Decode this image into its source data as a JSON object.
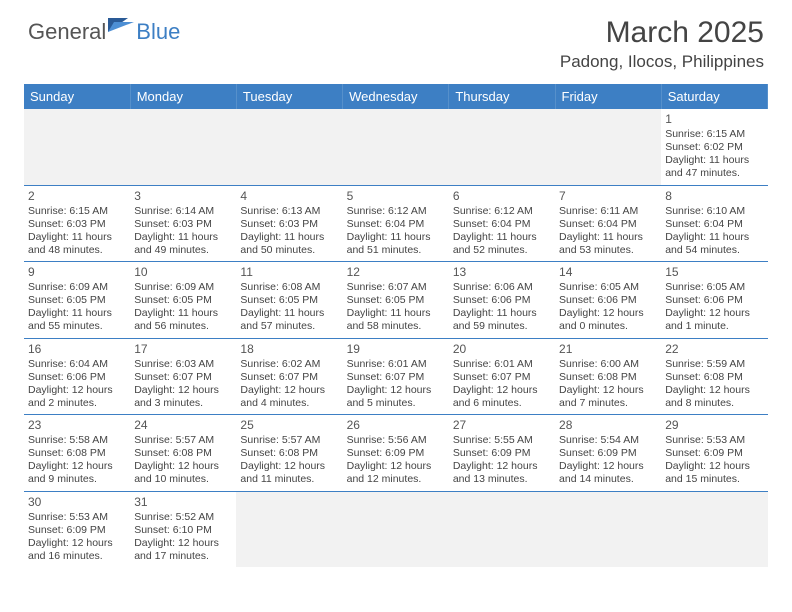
{
  "logo": {
    "text_1": "General",
    "text_2": "Blue"
  },
  "title": "March 2025",
  "location": "Padong, Ilocos, Philippines",
  "colors": {
    "header_bg": "#3d7fc4",
    "header_fg": "#ffffff",
    "rule": "#3d7fc4",
    "empty_bg": "#f2f2f2"
  },
  "weekdays": [
    "Sunday",
    "Monday",
    "Tuesday",
    "Wednesday",
    "Thursday",
    "Friday",
    "Saturday"
  ],
  "weeks": [
    [
      null,
      null,
      null,
      null,
      null,
      null,
      {
        "n": "1",
        "sr": "Sunrise: 6:15 AM",
        "ss": "Sunset: 6:02 PM",
        "dl": "Daylight: 11 hours and 47 minutes."
      }
    ],
    [
      {
        "n": "2",
        "sr": "Sunrise: 6:15 AM",
        "ss": "Sunset: 6:03 PM",
        "dl": "Daylight: 11 hours and 48 minutes."
      },
      {
        "n": "3",
        "sr": "Sunrise: 6:14 AM",
        "ss": "Sunset: 6:03 PM",
        "dl": "Daylight: 11 hours and 49 minutes."
      },
      {
        "n": "4",
        "sr": "Sunrise: 6:13 AM",
        "ss": "Sunset: 6:03 PM",
        "dl": "Daylight: 11 hours and 50 minutes."
      },
      {
        "n": "5",
        "sr": "Sunrise: 6:12 AM",
        "ss": "Sunset: 6:04 PM",
        "dl": "Daylight: 11 hours and 51 minutes."
      },
      {
        "n": "6",
        "sr": "Sunrise: 6:12 AM",
        "ss": "Sunset: 6:04 PM",
        "dl": "Daylight: 11 hours and 52 minutes."
      },
      {
        "n": "7",
        "sr": "Sunrise: 6:11 AM",
        "ss": "Sunset: 6:04 PM",
        "dl": "Daylight: 11 hours and 53 minutes."
      },
      {
        "n": "8",
        "sr": "Sunrise: 6:10 AM",
        "ss": "Sunset: 6:04 PM",
        "dl": "Daylight: 11 hours and 54 minutes."
      }
    ],
    [
      {
        "n": "9",
        "sr": "Sunrise: 6:09 AM",
        "ss": "Sunset: 6:05 PM",
        "dl": "Daylight: 11 hours and 55 minutes."
      },
      {
        "n": "10",
        "sr": "Sunrise: 6:09 AM",
        "ss": "Sunset: 6:05 PM",
        "dl": "Daylight: 11 hours and 56 minutes."
      },
      {
        "n": "11",
        "sr": "Sunrise: 6:08 AM",
        "ss": "Sunset: 6:05 PM",
        "dl": "Daylight: 11 hours and 57 minutes."
      },
      {
        "n": "12",
        "sr": "Sunrise: 6:07 AM",
        "ss": "Sunset: 6:05 PM",
        "dl": "Daylight: 11 hours and 58 minutes."
      },
      {
        "n": "13",
        "sr": "Sunrise: 6:06 AM",
        "ss": "Sunset: 6:06 PM",
        "dl": "Daylight: 11 hours and 59 minutes."
      },
      {
        "n": "14",
        "sr": "Sunrise: 6:05 AM",
        "ss": "Sunset: 6:06 PM",
        "dl": "Daylight: 12 hours and 0 minutes."
      },
      {
        "n": "15",
        "sr": "Sunrise: 6:05 AM",
        "ss": "Sunset: 6:06 PM",
        "dl": "Daylight: 12 hours and 1 minute."
      }
    ],
    [
      {
        "n": "16",
        "sr": "Sunrise: 6:04 AM",
        "ss": "Sunset: 6:06 PM",
        "dl": "Daylight: 12 hours and 2 minutes."
      },
      {
        "n": "17",
        "sr": "Sunrise: 6:03 AM",
        "ss": "Sunset: 6:07 PM",
        "dl": "Daylight: 12 hours and 3 minutes."
      },
      {
        "n": "18",
        "sr": "Sunrise: 6:02 AM",
        "ss": "Sunset: 6:07 PM",
        "dl": "Daylight: 12 hours and 4 minutes."
      },
      {
        "n": "19",
        "sr": "Sunrise: 6:01 AM",
        "ss": "Sunset: 6:07 PM",
        "dl": "Daylight: 12 hours and 5 minutes."
      },
      {
        "n": "20",
        "sr": "Sunrise: 6:01 AM",
        "ss": "Sunset: 6:07 PM",
        "dl": "Daylight: 12 hours and 6 minutes."
      },
      {
        "n": "21",
        "sr": "Sunrise: 6:00 AM",
        "ss": "Sunset: 6:08 PM",
        "dl": "Daylight: 12 hours and 7 minutes."
      },
      {
        "n": "22",
        "sr": "Sunrise: 5:59 AM",
        "ss": "Sunset: 6:08 PM",
        "dl": "Daylight: 12 hours and 8 minutes."
      }
    ],
    [
      {
        "n": "23",
        "sr": "Sunrise: 5:58 AM",
        "ss": "Sunset: 6:08 PM",
        "dl": "Daylight: 12 hours and 9 minutes."
      },
      {
        "n": "24",
        "sr": "Sunrise: 5:57 AM",
        "ss": "Sunset: 6:08 PM",
        "dl": "Daylight: 12 hours and 10 minutes."
      },
      {
        "n": "25",
        "sr": "Sunrise: 5:57 AM",
        "ss": "Sunset: 6:08 PM",
        "dl": "Daylight: 12 hours and 11 minutes."
      },
      {
        "n": "26",
        "sr": "Sunrise: 5:56 AM",
        "ss": "Sunset: 6:09 PM",
        "dl": "Daylight: 12 hours and 12 minutes."
      },
      {
        "n": "27",
        "sr": "Sunrise: 5:55 AM",
        "ss": "Sunset: 6:09 PM",
        "dl": "Daylight: 12 hours and 13 minutes."
      },
      {
        "n": "28",
        "sr": "Sunrise: 5:54 AM",
        "ss": "Sunset: 6:09 PM",
        "dl": "Daylight: 12 hours and 14 minutes."
      },
      {
        "n": "29",
        "sr": "Sunrise: 5:53 AM",
        "ss": "Sunset: 6:09 PM",
        "dl": "Daylight: 12 hours and 15 minutes."
      }
    ],
    [
      {
        "n": "30",
        "sr": "Sunrise: 5:53 AM",
        "ss": "Sunset: 6:09 PM",
        "dl": "Daylight: 12 hours and 16 minutes."
      },
      {
        "n": "31",
        "sr": "Sunrise: 5:52 AM",
        "ss": "Sunset: 6:10 PM",
        "dl": "Daylight: 12 hours and 17 minutes."
      },
      null,
      null,
      null,
      null,
      null
    ]
  ]
}
